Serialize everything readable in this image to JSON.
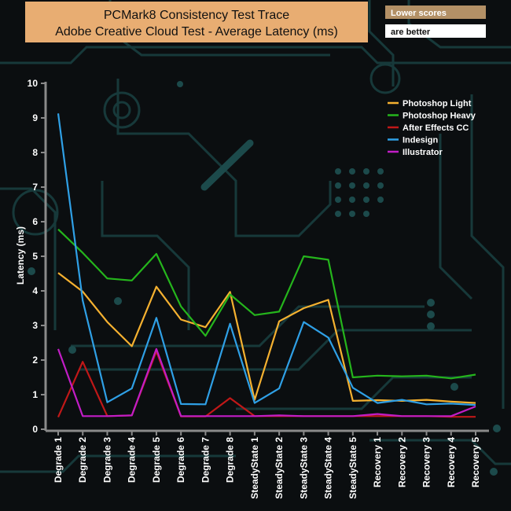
{
  "header": {
    "title_line1": "PCMark8 Consistency Test Trace",
    "title_line2": "Adobe Creative Cloud Test -  Average Latency (ms)",
    "note_top": "Lower scores",
    "note_bottom": "are better"
  },
  "colors": {
    "title_bg": "#e8ad72",
    "note_bg": "#b39066",
    "background": "#0b0e10",
    "circuit": "#17393a"
  },
  "chart_data": {
    "type": "line",
    "title": "PCMark8 Consistency Test Trace Adobe Creative Cloud Test -  Average Latency (ms)",
    "xlabel": "",
    "ylabel": "Latency (ms)",
    "ylim": [
      0,
      10
    ],
    "yticks": [
      0,
      1,
      2,
      3,
      4,
      5,
      6,
      7,
      8,
      9,
      10
    ],
    "grid": false,
    "legend_position": "top-right",
    "categories": [
      "Degrade 1",
      "Degrade 2",
      "Degrade 3",
      "Degrade 4",
      "Degrade 5",
      "Degrade 6",
      "Degrade 7",
      "Degrade 8",
      "SteadyState 1",
      "SteadyState 2",
      "SteadyState 3",
      "SteadyState 4",
      "SteadyState 5",
      "Recovery 1",
      "Recovery 2",
      "Recovery 3",
      "Recovery 4",
      "Recovery 5"
    ],
    "series": [
      {
        "name": "Photoshop Light",
        "color": "#f5b130",
        "values": [
          4.52,
          3.98,
          3.1,
          2.4,
          4.12,
          3.17,
          2.95,
          3.97,
          0.85,
          3.12,
          3.5,
          3.74,
          0.82,
          0.84,
          0.82,
          0.85,
          0.8,
          0.76
        ]
      },
      {
        "name": " Photoshop Heavy",
        "color": "#25b51c",
        "values": [
          5.78,
          5.1,
          4.36,
          4.3,
          5.07,
          3.55,
          2.7,
          3.9,
          3.3,
          3.4,
          5.0,
          4.9,
          1.5,
          1.55,
          1.53,
          1.55,
          1.47,
          1.58
        ]
      },
      {
        "name": "After Effects CC",
        "color": "#c01818",
        "values": [
          0.35,
          1.95,
          0.38,
          0.4,
          2.25,
          0.37,
          0.37,
          0.9,
          0.38,
          0.38,
          0.38,
          0.38,
          0.38,
          0.38,
          0.38,
          0.38,
          0.36,
          0.36
        ]
      },
      {
        "name": "Indesign",
        "color": "#2fa0e6",
        "values": [
          9.13,
          3.72,
          0.78,
          1.18,
          3.22,
          0.73,
          0.72,
          3.05,
          0.76,
          1.18,
          3.1,
          2.65,
          1.2,
          0.76,
          0.85,
          0.72,
          0.74,
          0.7
        ]
      },
      {
        "name": "Illustrator",
        "color": "#c21dc6",
        "values": [
          2.32,
          0.38,
          0.38,
          0.4,
          2.32,
          0.38,
          0.38,
          0.38,
          0.38,
          0.4,
          0.38,
          0.38,
          0.38,
          0.44,
          0.38,
          0.38,
          0.38,
          0.66
        ]
      }
    ]
  }
}
